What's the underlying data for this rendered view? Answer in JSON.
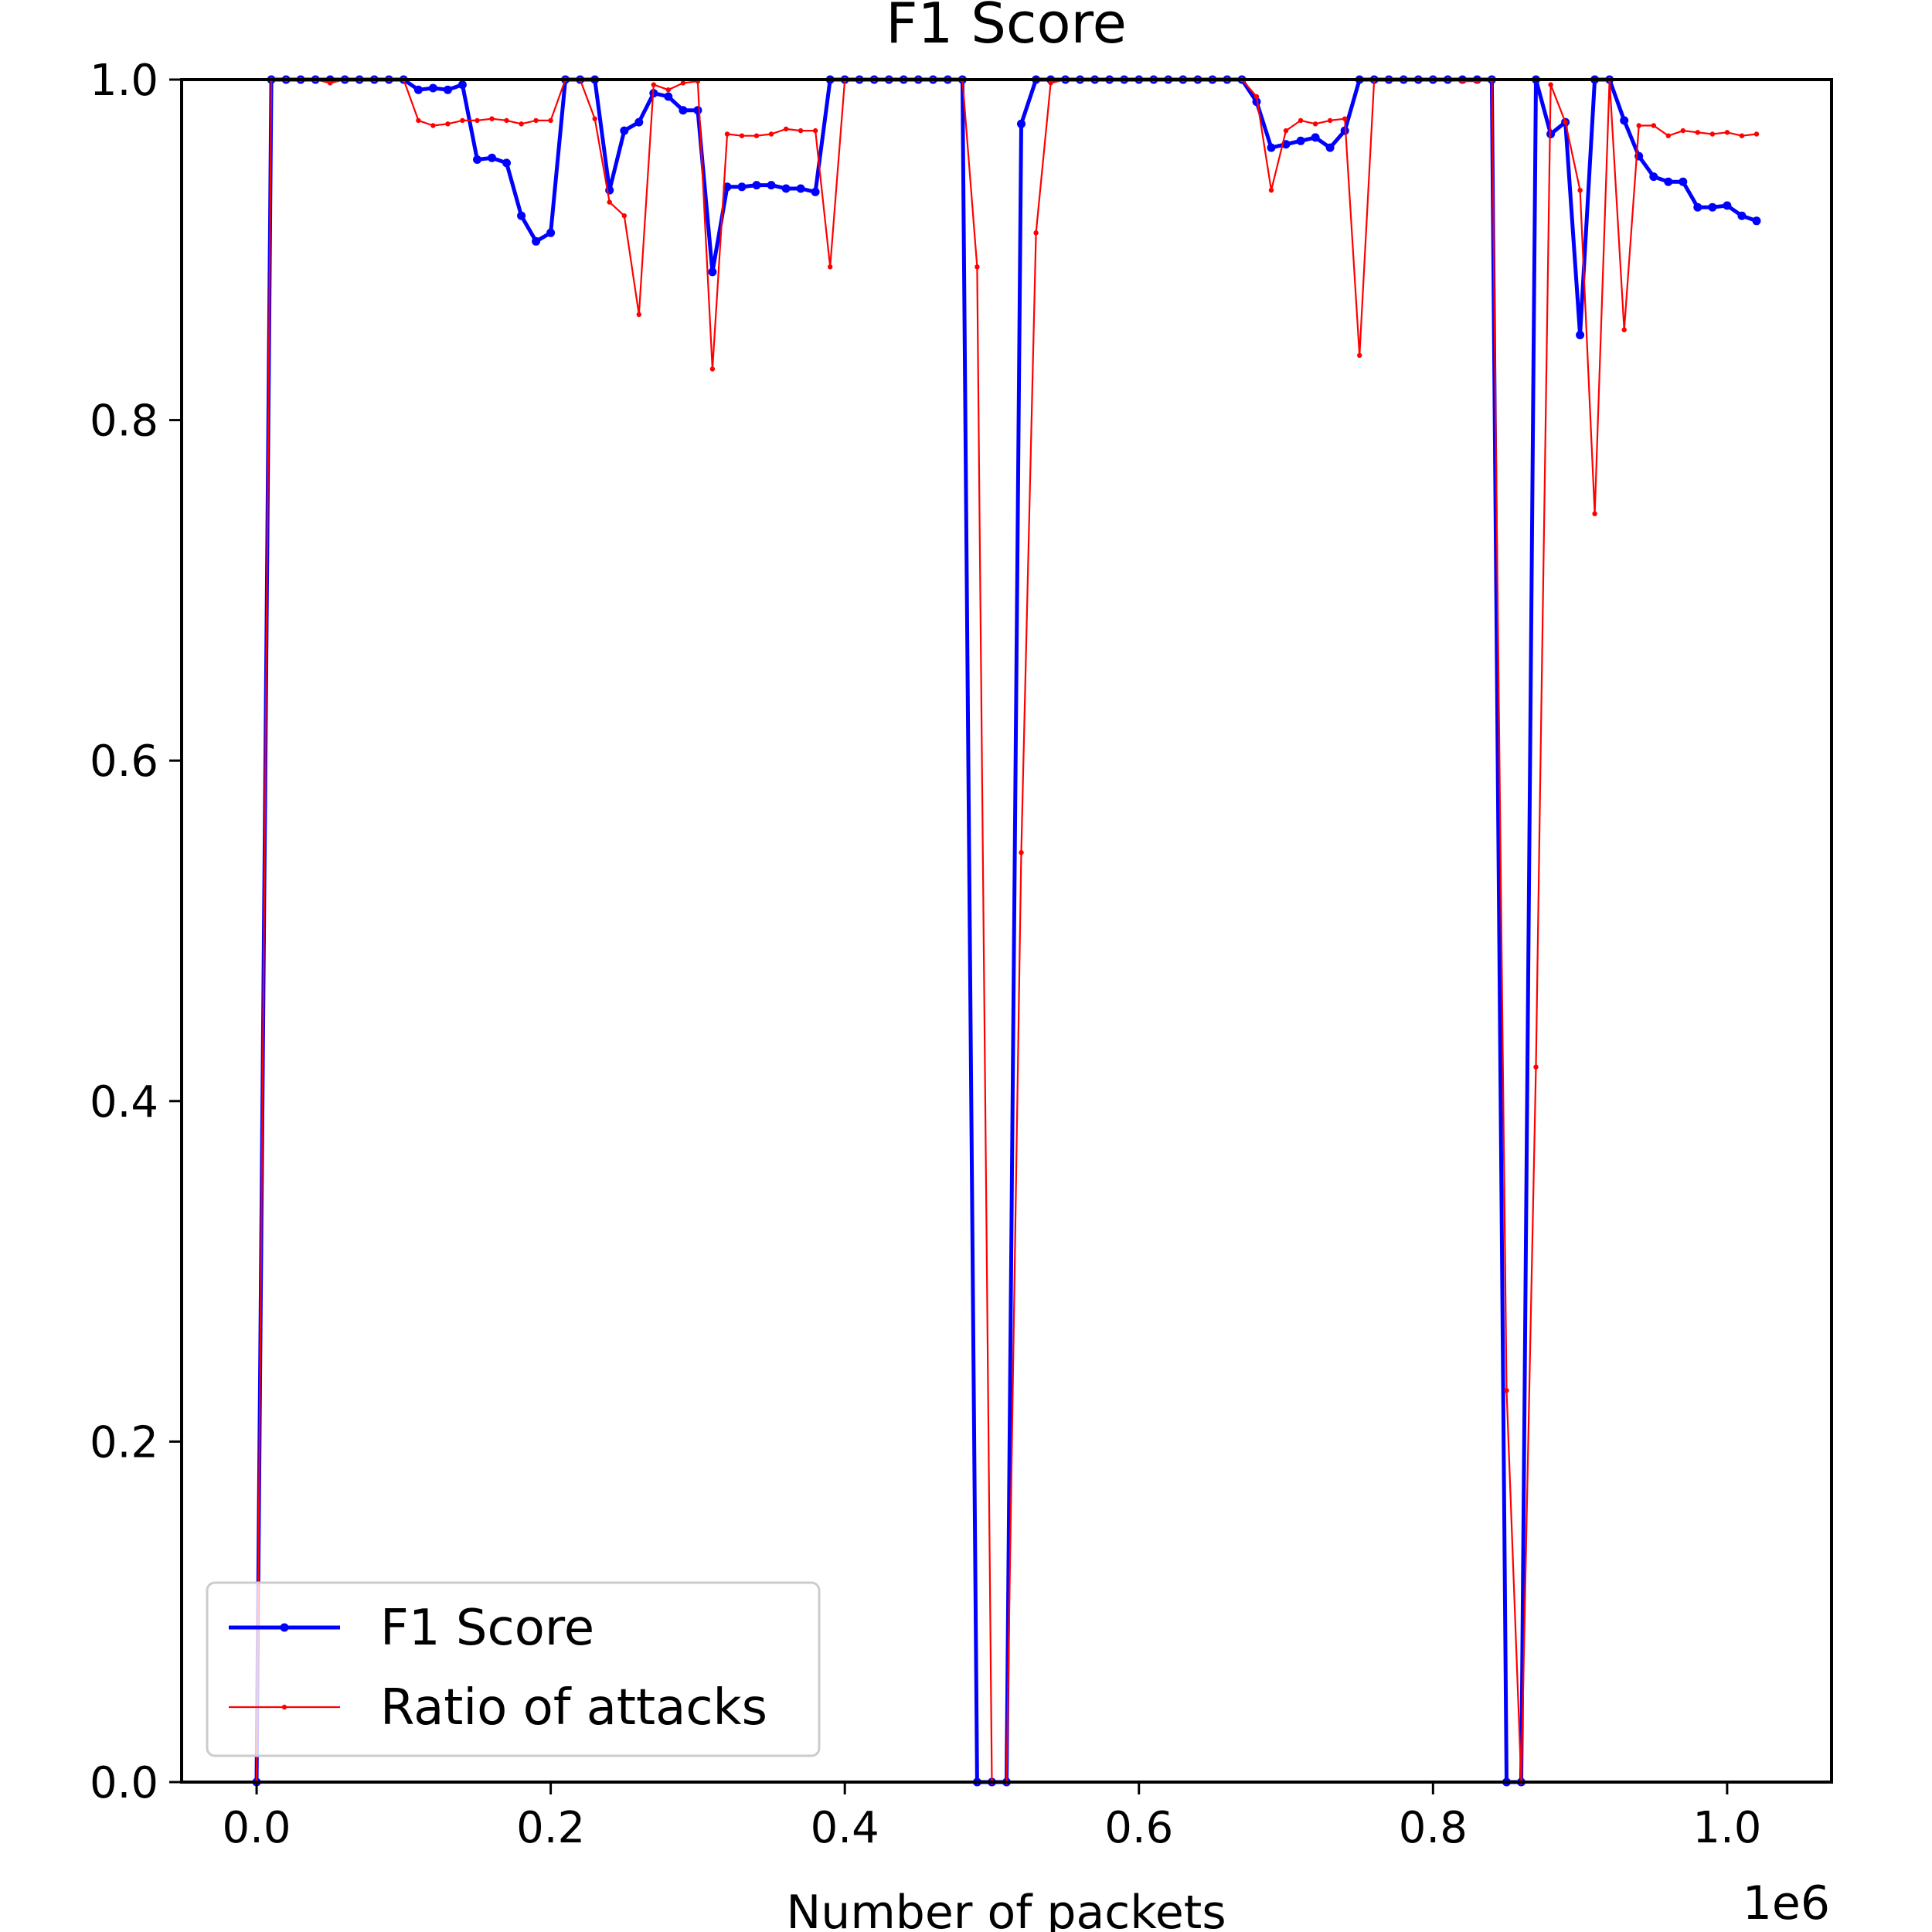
{
  "chart_data": {
    "type": "line",
    "title": "F1 Score",
    "xlabel": "Number of packets",
    "ylabel": "",
    "x_offset_label": "1e6",
    "xlim": [
      -0.051,
      1.071
    ],
    "ylim": [
      0.0,
      1.0
    ],
    "xticks": [
      0.0,
      0.2,
      0.4,
      0.6,
      0.8,
      1.0
    ],
    "xtick_labels": [
      "0.0",
      "0.2",
      "0.4",
      "0.6",
      "0.8",
      "1.0"
    ],
    "yticks": [
      0.0,
      0.2,
      0.4,
      0.6,
      0.8,
      1.0
    ],
    "ytick_labels": [
      "0.0",
      "0.2",
      "0.4",
      "0.6",
      "0.8",
      "1.0"
    ],
    "grid": false,
    "legend_position": "bottom-left",
    "x": [
      0.0,
      0.01,
      0.02,
      0.03,
      0.04,
      0.05,
      0.06,
      0.07,
      0.08,
      0.09,
      0.1,
      0.11,
      0.12,
      0.13,
      0.14,
      0.15,
      0.16,
      0.17,
      0.18,
      0.19,
      0.2,
      0.21,
      0.22,
      0.23,
      0.24,
      0.25,
      0.26,
      0.27,
      0.28,
      0.29,
      0.3,
      0.31,
      0.32,
      0.33,
      0.34,
      0.35,
      0.36,
      0.37,
      0.38,
      0.39,
      0.4,
      0.41,
      0.42,
      0.43,
      0.44,
      0.45,
      0.46,
      0.47,
      0.48,
      0.49,
      0.5,
      0.51,
      0.52,
      0.53,
      0.54,
      0.55,
      0.56,
      0.57,
      0.58,
      0.59,
      0.6,
      0.61,
      0.62,
      0.63,
      0.64,
      0.65,
      0.66,
      0.67,
      0.68,
      0.69,
      0.7,
      0.71,
      0.72,
      0.73,
      0.74,
      0.75,
      0.76,
      0.77,
      0.78,
      0.79,
      0.8,
      0.81,
      0.82,
      0.83,
      0.84,
      0.85,
      0.86,
      0.87,
      0.88,
      0.89,
      0.9,
      0.91,
      0.92,
      0.93,
      0.94,
      0.95,
      0.96,
      0.97,
      0.98,
      0.99,
      1.0,
      1.01,
      1.02
    ],
    "series": [
      {
        "name": "F1 Score",
        "color": "#0000ff",
        "values": [
          0.0,
          1.0,
          1.0,
          1.0,
          1.0,
          1.0,
          1.0,
          1.0,
          1.0,
          1.0,
          1.0,
          0.994,
          0.995,
          0.994,
          0.997,
          0.953,
          0.954,
          0.951,
          0.92,
          0.905,
          0.91,
          1.0,
          1.0,
          1.0,
          0.935,
          0.97,
          0.975,
          0.992,
          0.99,
          0.982,
          0.982,
          0.887,
          0.937,
          0.937,
          0.938,
          0.938,
          0.936,
          0.936,
          0.934,
          1.0,
          1.0,
          1.0,
          1.0,
          1.0,
          1.0,
          1.0,
          1.0,
          1.0,
          1.0,
          0.0,
          0.0,
          0.0,
          0.974,
          1.0,
          1.0,
          1.0,
          1.0,
          1.0,
          1.0,
          1.0,
          1.0,
          1.0,
          1.0,
          1.0,
          1.0,
          1.0,
          1.0,
          1.0,
          0.987,
          0.96,
          0.962,
          0.964,
          0.966,
          0.96,
          0.97,
          1.0,
          1.0,
          1.0,
          1.0,
          1.0,
          1.0,
          1.0,
          1.0,
          1.0,
          1.0,
          0.0,
          0.0,
          1.0,
          0.968,
          0.975,
          0.85,
          1.0,
          1.0,
          0.976,
          0.955,
          0.943,
          0.94,
          0.94,
          0.925,
          0.925,
          0.926,
          0.92,
          0.917
        ]
      },
      {
        "name": "Ratio of attacks",
        "color": "#ff0000",
        "values": [
          0.0,
          1.0,
          1.0,
          1.0,
          1.0,
          0.998,
          1.0,
          1.0,
          1.0,
          1.0,
          1.0,
          0.976,
          0.973,
          0.974,
          0.976,
          0.976,
          0.977,
          0.976,
          0.974,
          0.976,
          0.976,
          1.0,
          1.0,
          0.977,
          0.928,
          0.92,
          0.862,
          0.997,
          0.994,
          0.998,
          0.999,
          0.83,
          0.968,
          0.967,
          0.967,
          0.968,
          0.971,
          0.97,
          0.97,
          0.89,
          1.0,
          1.0,
          1.0,
          1.0,
          1.0,
          1.0,
          1.0,
          1.0,
          1.0,
          0.89,
          0.0,
          0.0,
          0.546,
          0.91,
          0.998,
          1.0,
          1.0,
          1.0,
          1.0,
          1.0,
          1.0,
          1.0,
          1.0,
          1.0,
          1.0,
          1.0,
          1.0,
          1.0,
          0.99,
          0.935,
          0.97,
          0.976,
          0.974,
          0.976,
          0.977,
          0.838,
          1.0,
          1.0,
          1.0,
          1.0,
          1.0,
          1.0,
          0.999,
          0.999,
          1.0,
          0.23,
          0.0,
          0.42,
          0.997,
          0.975,
          0.935,
          0.745,
          1.0,
          0.853,
          0.973,
          0.973,
          0.967,
          0.97,
          0.969,
          0.968,
          0.969,
          0.967,
          0.968
        ]
      }
    ]
  }
}
